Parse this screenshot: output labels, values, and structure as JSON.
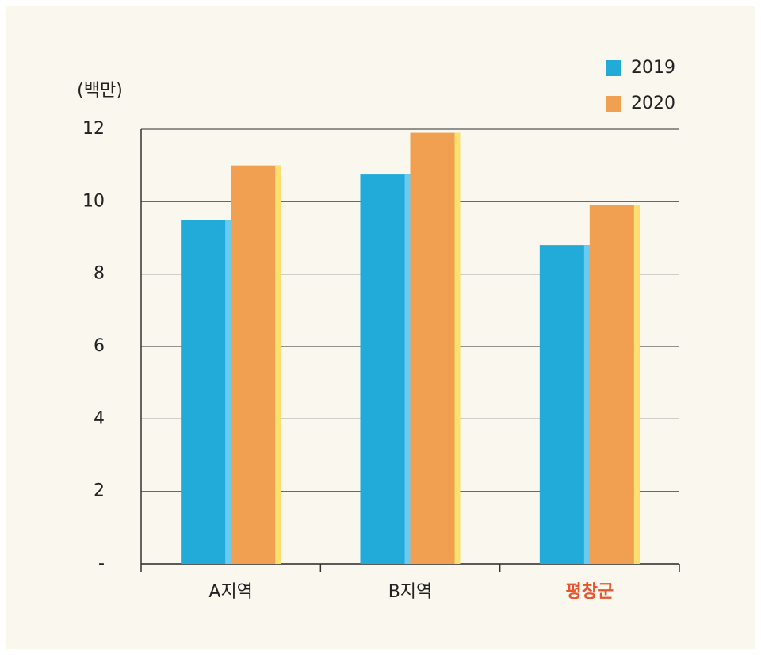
{
  "chart_data": {
    "type": "bar",
    "y_unit_label": "(백만)",
    "categories": [
      "A지역",
      "B지역",
      "평창군"
    ],
    "category_colors": [
      "#222222",
      "#222222",
      "#e8552f"
    ],
    "series": [
      {
        "name": "2019",
        "color": "#22aad8",
        "edge_color": "#6cc9ef",
        "values": [
          9.5,
          10.75,
          8.8
        ]
      },
      {
        "name": "2020",
        "color": "#f0a050",
        "edge_color": "#fbe070",
        "values": [
          11.0,
          11.9,
          9.9
        ]
      }
    ],
    "ylim": [
      0,
      12
    ],
    "yticks": [
      {
        "value": 0,
        "label": "-"
      },
      2,
      4,
      6,
      8,
      10,
      12
    ],
    "grid": true,
    "legend": "top-right"
  }
}
